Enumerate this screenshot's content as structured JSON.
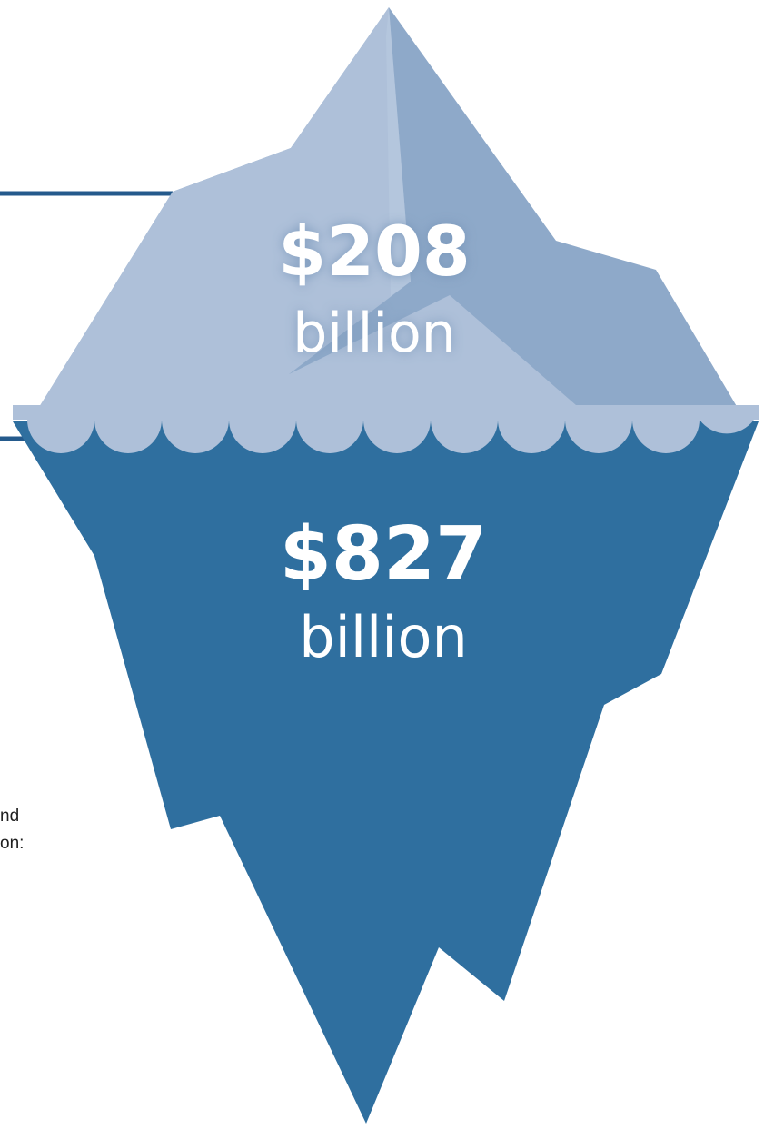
{
  "iceberg": {
    "above_water": {
      "amount": "$208",
      "unit": "billion"
    },
    "below_water": {
      "amount": "$827",
      "unit": "billion"
    }
  },
  "cut_off_text": {
    "line_1": "nd",
    "line_2": "on:"
  },
  "colors": {
    "above_light": "#aec0d9",
    "above_dark": "#8ea9c9",
    "below": "#2f6f9f",
    "marker_line": "#245a8c",
    "scallop": "#aec0d9"
  }
}
